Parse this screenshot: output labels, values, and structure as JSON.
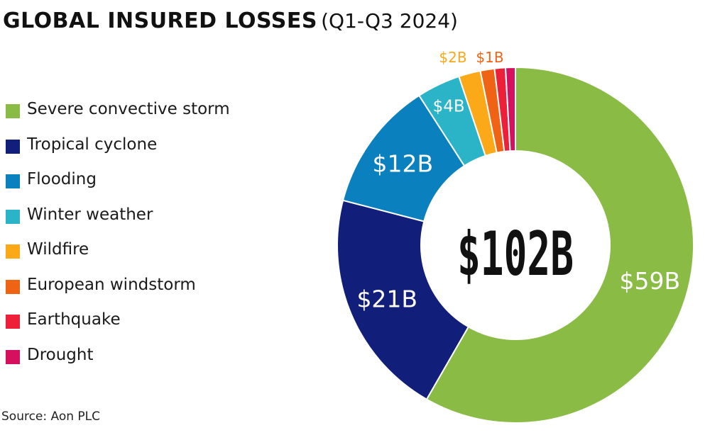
{
  "chart_data": {
    "type": "donut",
    "title": "GLOBAL INSURED LOSSES",
    "subtitle": "(Q1-Q3 2024)",
    "total_label": "$102B",
    "unit": "$B",
    "categories": [
      "Severe convective storm",
      "Tropical cyclone",
      "Flooding",
      "Winter weather",
      "Wildfire",
      "European windstorm",
      "Earthquake",
      "Drought"
    ],
    "values": [
      59,
      21,
      12,
      4,
      2,
      1.3,
      1,
      0.9
    ],
    "data_labels": [
      "$59B",
      "$21B",
      "$12B",
      "$4B",
      "$2B",
      "$1B",
      "",
      ""
    ],
    "colors": [
      "#8ABB45",
      "#121F7A",
      "#0B80BE",
      "#2BB3C8",
      "#FBA919",
      "#EE6414",
      "#EC2039",
      "#D5105E"
    ],
    "legend_position": "left"
  },
  "source": "Source: Aon PLC"
}
